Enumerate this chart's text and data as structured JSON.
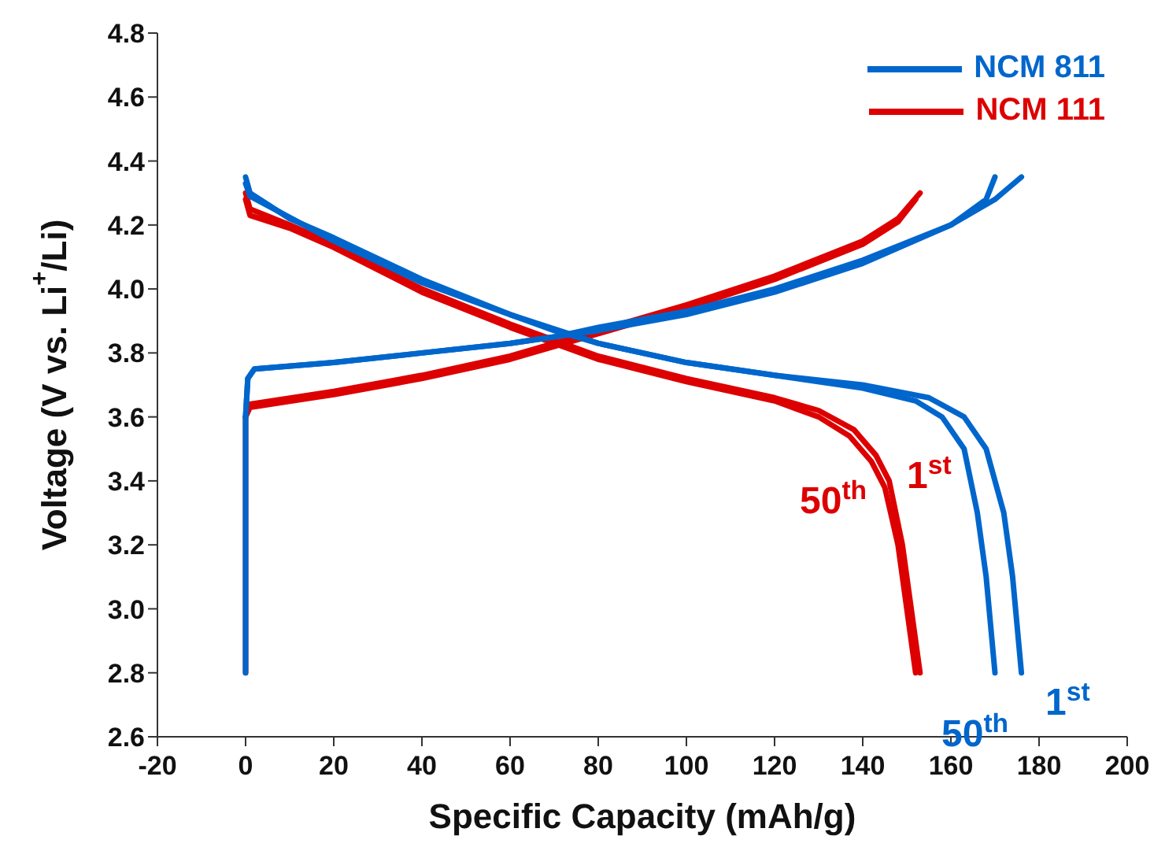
{
  "chart_data": {
    "type": "line",
    "xlabel": "Specific Capacity (mAh/g)",
    "ylabel": "Voltage (V vs. Li$^{+}$/Li)",
    "xlim": [
      -20,
      200
    ],
    "xticks": [
      -20,
      0,
      20,
      40,
      60,
      80,
      100,
      120,
      140,
      160,
      180,
      200
    ],
    "ylim": [
      2.6,
      4.8
    ],
    "yticks": [
      2.6,
      2.8,
      {
        "value": 3,
        "label": "3.0"
      },
      3.2,
      3.4,
      3.6,
      3.8,
      {
        "value": 4,
        "label": "4.0"
      },
      4.2,
      4.4,
      4.6,
      4.8
    ],
    "grid": false,
    "legend": "top right",
    "marker": "none",
    "line_style": "solid",
    "series": [
      {
        "name": "NCM 811",
        "color": "#0066cc",
        "x": [
          0,
          0,
          0.5,
          2,
          20,
          40,
          60,
          70,
          80,
          100,
          120,
          140,
          160,
          170,
          176
        ],
        "values": [
          2.8,
          3.6,
          3.72,
          3.75,
          3.77,
          3.8,
          3.83,
          3.85,
          3.88,
          3.93,
          4.0,
          4.09,
          4.2,
          4.28,
          4.35
        ]
      },
      {
        "color": "#0066cc",
        "x": [
          0,
          1,
          10,
          20,
          40,
          60,
          70,
          80,
          100,
          120,
          140,
          155,
          163,
          168,
          172,
          174,
          175,
          176
        ],
        "values": [
          4.35,
          4.3,
          4.22,
          4.16,
          4.03,
          3.92,
          3.87,
          3.83,
          3.77,
          3.73,
          3.7,
          3.66,
          3.6,
          3.5,
          3.3,
          3.1,
          2.95,
          2.8
        ]
      },
      {
        "color": "#0066cc",
        "x": [
          0,
          0.5,
          2,
          20,
          40,
          60,
          70,
          80,
          100,
          120,
          140,
          160,
          168,
          170
        ],
        "values": [
          3.6,
          3.72,
          3.75,
          3.77,
          3.8,
          3.83,
          3.85,
          3.87,
          3.92,
          3.99,
          4.08,
          4.2,
          4.28,
          4.35
        ]
      },
      {
        "color": "#0066cc",
        "x": [
          0,
          1,
          20,
          40,
          60,
          80,
          100,
          120,
          140,
          152,
          158,
          163,
          166,
          168,
          169,
          170
        ],
        "values": [
          4.33,
          4.29,
          4.15,
          4.02,
          3.92,
          3.83,
          3.77,
          3.73,
          3.69,
          3.65,
          3.6,
          3.5,
          3.3,
          3.1,
          2.95,
          2.8
        ]
      },
      {
        "name": "NCM 111",
        "color": "#dd0000",
        "x": [
          0,
          0,
          1,
          20,
          40,
          60,
          70,
          80,
          100,
          120,
          140,
          148,
          153
        ],
        "values": [
          2.8,
          3.6,
          3.64,
          3.68,
          3.73,
          3.79,
          3.83,
          3.87,
          3.95,
          4.04,
          4.15,
          4.22,
          4.3
        ]
      },
      {
        "color": "#dd0000",
        "x": [
          0,
          1,
          10,
          20,
          40,
          60,
          70,
          80,
          100,
          120,
          130,
          138,
          143,
          146,
          149,
          151,
          153
        ],
        "values": [
          4.3,
          4.25,
          4.2,
          4.14,
          4.0,
          3.89,
          3.84,
          3.79,
          3.72,
          3.66,
          3.62,
          3.56,
          3.48,
          3.4,
          3.2,
          3.0,
          2.8
        ]
      },
      {
        "color": "#dd0000",
        "x": [
          0,
          1,
          20,
          40,
          60,
          70,
          80,
          100,
          120,
          140,
          148,
          152
        ],
        "values": [
          3.6,
          3.63,
          3.67,
          3.72,
          3.78,
          3.82,
          3.86,
          3.94,
          4.03,
          4.14,
          4.21,
          4.28
        ]
      },
      {
        "color": "#dd0000",
        "x": [
          0,
          1,
          10,
          20,
          40,
          60,
          70,
          80,
          100,
          120,
          130,
          137,
          142,
          145,
          148,
          150,
          152
        ],
        "values": [
          4.28,
          4.23,
          4.19,
          4.13,
          3.99,
          3.88,
          3.83,
          3.78,
          3.71,
          3.65,
          3.6,
          3.54,
          3.46,
          3.38,
          3.2,
          3.0,
          2.8
        ]
      }
    ],
    "annotations": [
      "1$^{st}$",
      "50$^{th}$",
      "50$^{th}$",
      "1$^{st}$"
    ]
  }
}
